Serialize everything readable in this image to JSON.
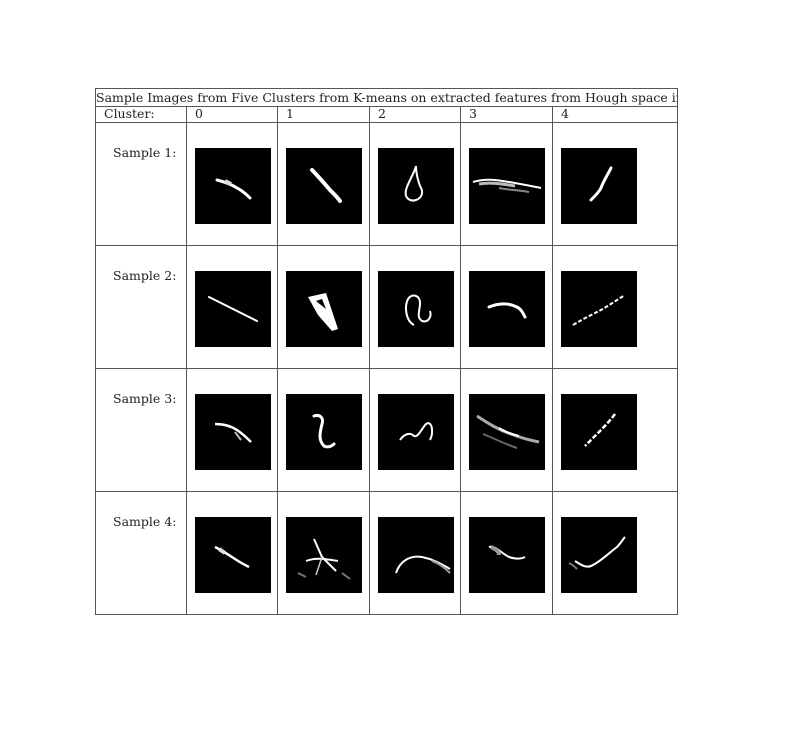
{
  "table": {
    "caption": "Sample Images from Five Clusters from K-means on extracted features from Hough space images",
    "cluster_header": "Cluster:",
    "clusters": [
      "0",
      "1",
      "2",
      "3",
      "4"
    ],
    "rows": [
      {
        "label": "Sample 1:"
      },
      {
        "label": "Sample 2:"
      },
      {
        "label": "Sample 3:"
      },
      {
        "label": "Sample 4:"
      }
    ]
  },
  "colors": {
    "image_background": "#000000",
    "stroke": "#ffffff",
    "rule": "#555555"
  }
}
